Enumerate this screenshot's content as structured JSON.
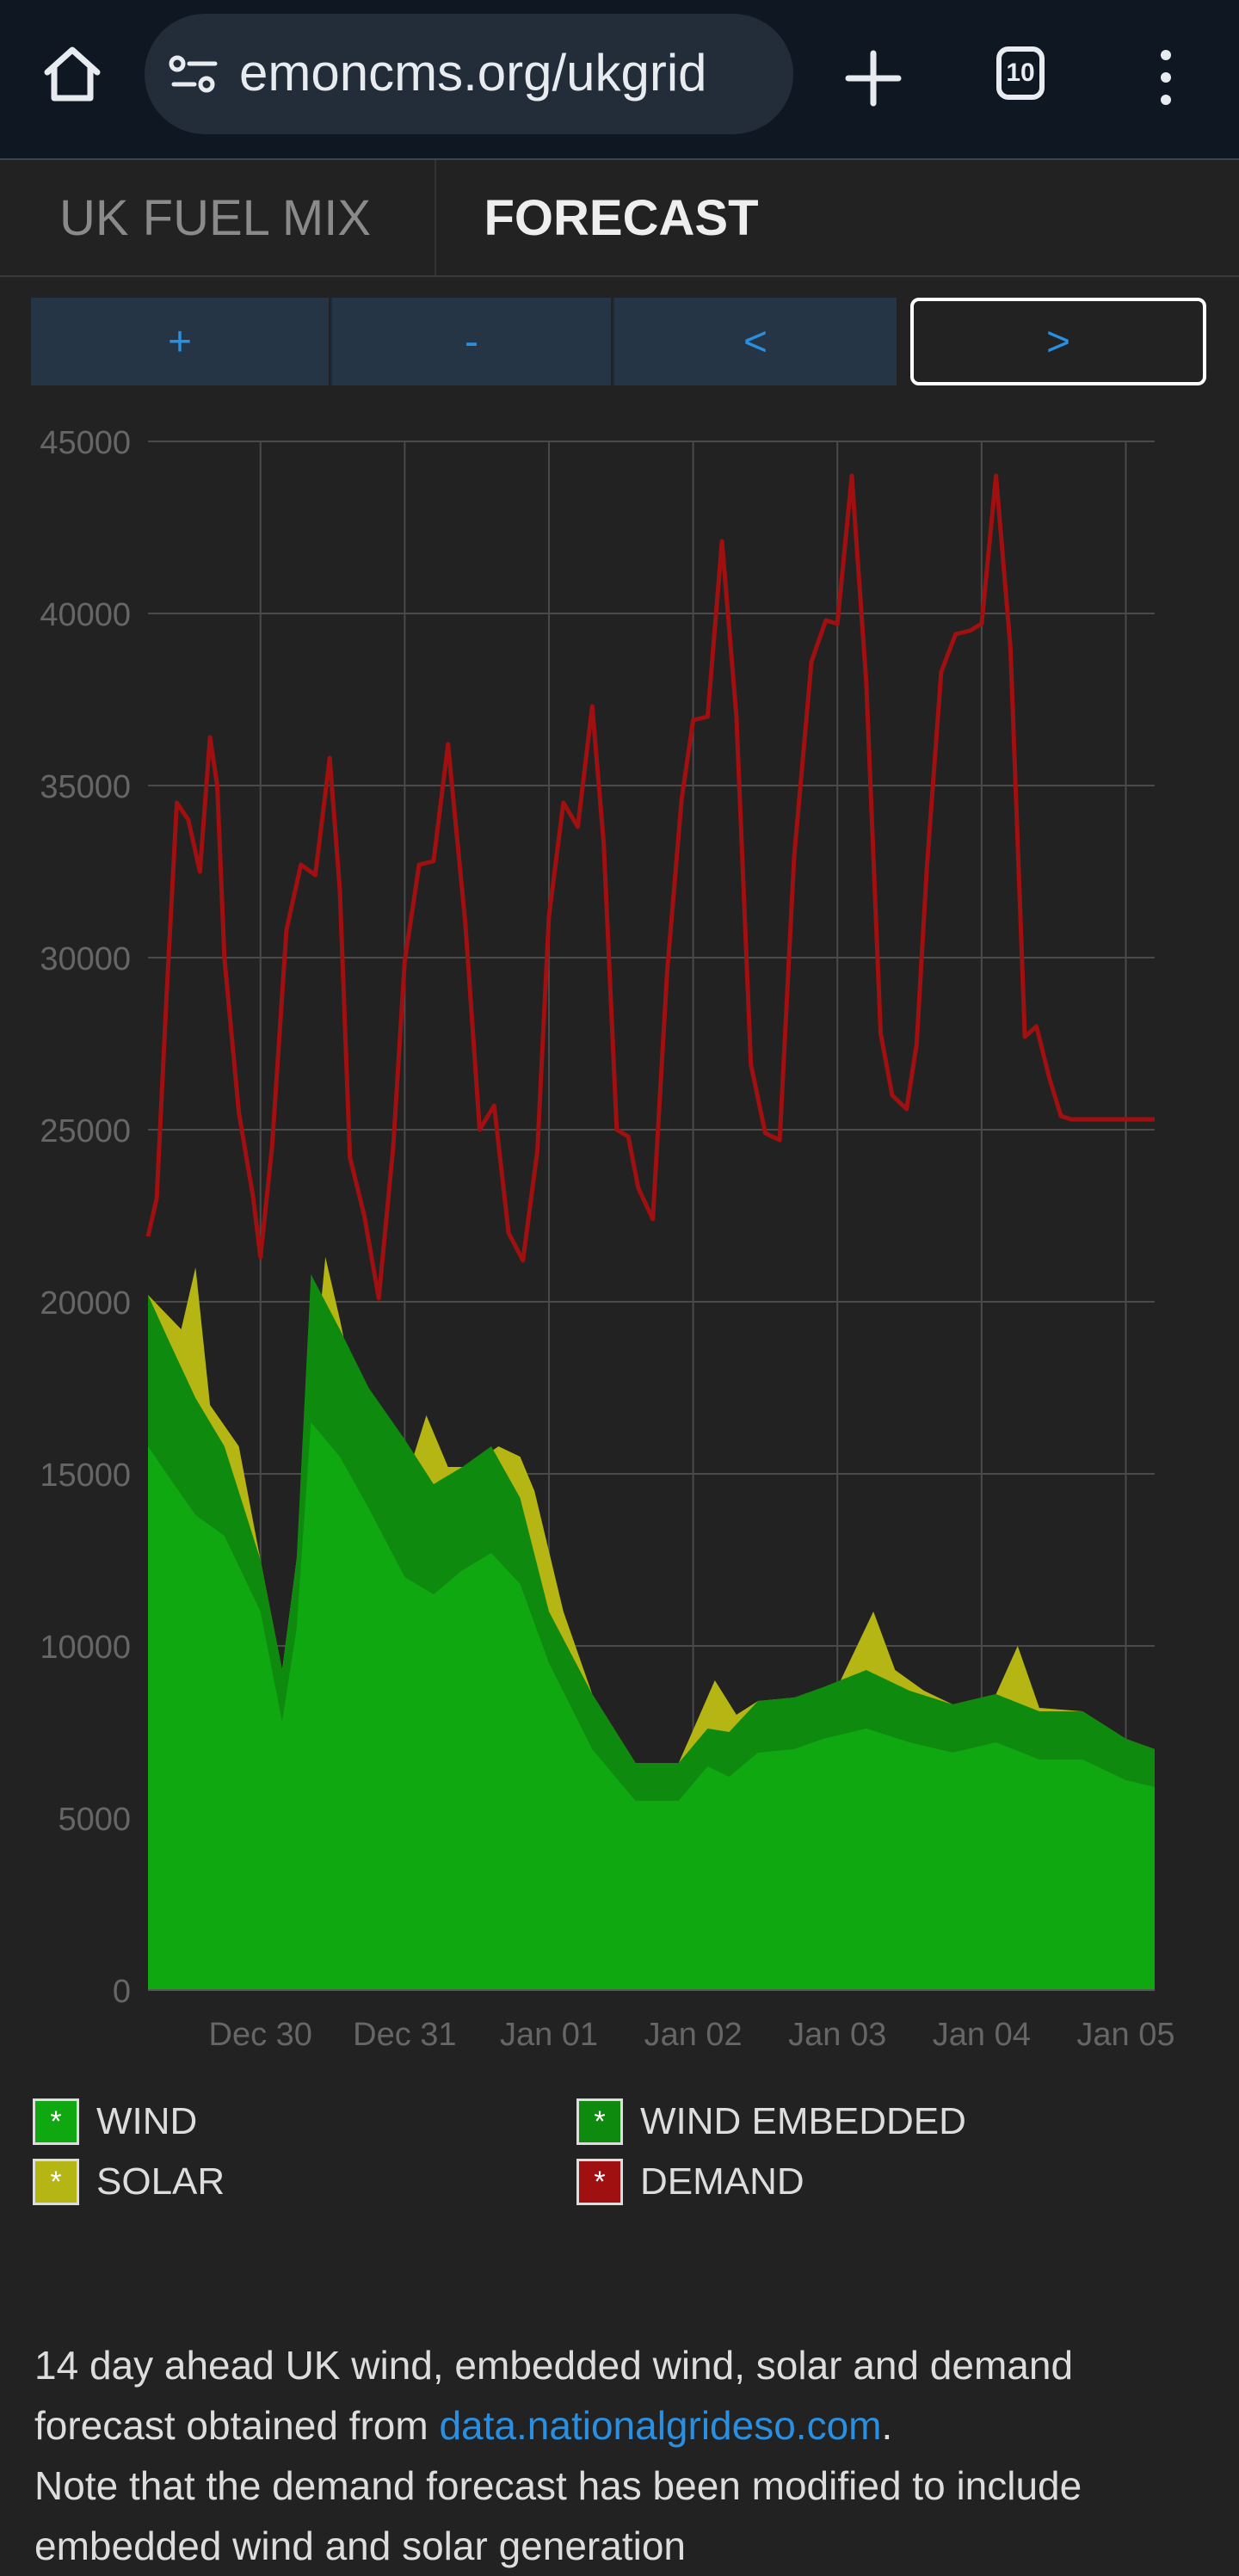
{
  "browser": {
    "url": "emoncms.org/ukgrid",
    "tab_count": "10",
    "icons": {
      "home": "home-icon",
      "site": "site-settings-icon",
      "new_tab": "plus-icon",
      "menu": "more-vert-icon"
    }
  },
  "page_tabs": [
    {
      "label": "UK FUEL MIX",
      "active": false
    },
    {
      "label": "FORECAST",
      "active": true
    }
  ],
  "controls": [
    {
      "label": "+"
    },
    {
      "label": "-"
    },
    {
      "label": "<"
    },
    {
      "label": ">"
    }
  ],
  "chart_data": {
    "type": "area",
    "ylim": [
      0,
      45000
    ],
    "y_ticks": [
      0,
      5000,
      10000,
      15000,
      20000,
      25000,
      30000,
      35000,
      40000,
      45000
    ],
    "x_ticks": [
      "Dec 30",
      "Dec 31",
      "Jan 01",
      "Jan 02",
      "Jan 03",
      "Jan 04",
      "Jan 05"
    ],
    "xlim_days": [
      -0.78,
      6.2
    ],
    "x_tick_days": [
      0,
      1,
      2,
      3,
      4,
      5,
      6
    ],
    "grid": true,
    "colors": {
      "wind": "#10a810",
      "wind_embedded": "#0e8a0e",
      "solar": "#b5b514",
      "demand": "#a01010"
    },
    "series": [
      {
        "name": "WIND",
        "x": [
          -0.78,
          -0.65,
          -0.45,
          -0.25,
          0,
          0.15,
          0.25,
          0.35,
          0.55,
          0.75,
          1,
          1.2,
          1.4,
          1.6,
          1.8,
          2,
          2.3,
          2.6,
          2.9,
          3.1,
          3.25,
          3.45,
          3.7,
          3.9,
          4.2,
          4.5,
          4.8,
          5.1,
          5.4,
          5.7,
          6.0,
          6.2
        ],
        "values": [
          15800,
          15000,
          13800,
          13200,
          11000,
          7800,
          10500,
          16500,
          15500,
          14000,
          12000,
          11500,
          12200,
          12700,
          11800,
          9500,
          7000,
          5500,
          5500,
          6500,
          6200,
          6900,
          7000,
          7300,
          7600,
          7200,
          6900,
          7200,
          6700,
          6700,
          6100,
          5900
        ]
      },
      {
        "name": "WIND EMBEDDED",
        "x": [
          -0.78,
          -0.65,
          -0.45,
          -0.25,
          0,
          0.15,
          0.25,
          0.35,
          0.55,
          0.75,
          1,
          1.2,
          1.4,
          1.6,
          1.8,
          2,
          2.3,
          2.6,
          2.9,
          3.1,
          3.25,
          3.45,
          3.7,
          3.9,
          4.2,
          4.5,
          4.8,
          5.1,
          5.4,
          5.7,
          6.0,
          6.2
        ],
        "values": [
          20200,
          19000,
          17200,
          15800,
          12500,
          9300,
          12500,
          20800,
          19200,
          17500,
          16000,
          14700,
          15200,
          15800,
          14300,
          11000,
          8600,
          6600,
          6600,
          7600,
          7500,
          8400,
          8500,
          8800,
          9300,
          8700,
          8300,
          8600,
          8100,
          8100,
          7300,
          7000
        ]
      },
      {
        "name": "SOLAR",
        "x": [
          -0.78,
          -0.55,
          -0.45,
          -0.35,
          -0.15,
          0,
          0.15,
          0.25,
          0.45,
          0.55,
          0.65,
          0.85,
          1,
          1.15,
          1.3,
          1.45,
          1.65,
          1.8,
          1.9,
          2.1,
          2.3,
          2.6,
          2.9,
          3.15,
          3.3,
          3.45,
          3.7,
          4.0,
          4.25,
          4.4,
          4.6,
          4.8,
          5.1,
          5.25,
          5.4,
          5.7,
          6.0,
          6.2
        ],
        "values": [
          20200,
          19200,
          21000,
          17000,
          15800,
          12500,
          9300,
          12500,
          21300,
          19500,
          17500,
          16000,
          14700,
          16700,
          15200,
          15200,
          15800,
          15500,
          14500,
          11000,
          8600,
          6600,
          6600,
          9000,
          8000,
          8400,
          8500,
          8800,
          11000,
          9300,
          8700,
          8300,
          8600,
          10000,
          8200,
          8100,
          7300,
          7000
        ]
      },
      {
        "name": "DEMAND",
        "x": [
          -0.78,
          -0.72,
          -0.65,
          -0.58,
          -0.5,
          -0.42,
          -0.35,
          -0.3,
          -0.25,
          -0.15,
          -0.05,
          0.0,
          0.08,
          0.18,
          0.28,
          0.38,
          0.48,
          0.55,
          0.62,
          0.72,
          0.82,
          0.92,
          1.0,
          1.1,
          1.2,
          1.3,
          1.42,
          1.52,
          1.62,
          1.72,
          1.82,
          1.92,
          2.0,
          2.1,
          2.2,
          2.3,
          2.38,
          2.47,
          2.55,
          2.62,
          2.72,
          2.82,
          2.92,
          3.0,
          3.1,
          3.2,
          3.3,
          3.4,
          3.5,
          3.6,
          3.7,
          3.82,
          3.92,
          4.0,
          4.1,
          4.2,
          4.3,
          4.38,
          4.48,
          4.55,
          4.62,
          4.72,
          4.82,
          4.92,
          5.0,
          5.1,
          5.2,
          5.3,
          5.38,
          5.47,
          5.55,
          5.62,
          5.72,
          5.82,
          5.92,
          6.0,
          6.1,
          6.2
        ],
        "values": [
          21900,
          23000,
          29000,
          34500,
          34000,
          32500,
          36400,
          35000,
          30000,
          25500,
          23000,
          21300,
          24500,
          30800,
          32700,
          32400,
          35800,
          32000,
          24200,
          22500,
          20100,
          24500,
          29900,
          32700,
          32800,
          36200,
          31000,
          25000,
          25700,
          22000,
          21200,
          24400,
          31200,
          34500,
          33800,
          37300,
          33300,
          25000,
          24800,
          23300,
          22400,
          29600,
          34600,
          36900,
          37000,
          42100,
          37000,
          26900,
          24900,
          24700,
          32900,
          38600,
          39800,
          39700,
          44000,
          38000,
          27800,
          26000,
          25600,
          27500,
          32600,
          38300,
          39400,
          39500,
          39700,
          44000,
          39000,
          27700,
          28000,
          26500,
          25400,
          25300,
          25300,
          25300,
          25300,
          25300,
          25300,
          25300
        ]
      }
    ]
  },
  "legend": [
    {
      "label": "WIND",
      "color": "#10a810"
    },
    {
      "label": "WIND EMBEDDED",
      "color": "#0e8a0e"
    },
    {
      "label": "SOLAR",
      "color": "#b5b514"
    },
    {
      "label": "DEMAND",
      "color": "#a01010"
    }
  ],
  "legend_marker": "*",
  "description": {
    "line1": "14 day ahead UK wind, embedded wind, solar and demand forecast obtained from ",
    "link": "data.nationalgrideso.com",
    "after_link": ".",
    "line2": "Note that the demand forecast has been modified to include embedded wind and solar generation"
  }
}
